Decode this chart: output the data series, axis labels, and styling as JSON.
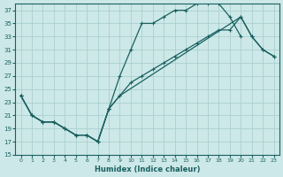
{
  "xlabel": "Humidex (Indice chaleur)",
  "bg_color": "#cde8e8",
  "grid_color": "#aacfcf",
  "line_color": "#1a6060",
  "xlim": [
    -0.5,
    23.5
  ],
  "ylim": [
    15,
    38
  ],
  "xticks": [
    0,
    1,
    2,
    3,
    4,
    5,
    6,
    7,
    8,
    9,
    10,
    11,
    12,
    13,
    14,
    15,
    16,
    17,
    18,
    19,
    20,
    21,
    22,
    23
  ],
  "yticks": [
    15,
    17,
    19,
    21,
    23,
    25,
    27,
    29,
    31,
    33,
    35,
    37
  ],
  "curve1_x": [
    0,
    1,
    2,
    3,
    4,
    5,
    6,
    7,
    8,
    9,
    10,
    11,
    12,
    13,
    14,
    15,
    16,
    17,
    18,
    19,
    20
  ],
  "curve1_y": [
    24,
    21,
    20,
    20,
    19,
    18,
    18,
    17,
    22,
    27,
    31,
    35,
    35,
    36,
    37,
    37,
    38,
    38,
    38,
    36,
    33
  ],
  "curve2_x": [
    0,
    1,
    2,
    3,
    4,
    5,
    6,
    7,
    8,
    9,
    10,
    11,
    12,
    13,
    14,
    15,
    16,
    17,
    18,
    19,
    20,
    21,
    22,
    23
  ],
  "curve2_y": [
    24,
    21,
    20,
    20,
    19,
    18,
    18,
    17,
    22,
    24,
    26,
    27,
    28,
    29,
    30,
    31,
    32,
    33,
    34,
    34,
    36,
    33,
    31,
    30
  ],
  "curve3_x": [
    0,
    1,
    2,
    3,
    4,
    5,
    6,
    7,
    8,
    9,
    20,
    21,
    22,
    23
  ],
  "curve3_y": [
    24,
    21,
    20,
    20,
    19,
    18,
    18,
    17,
    22,
    24,
    36,
    33,
    31,
    30
  ]
}
